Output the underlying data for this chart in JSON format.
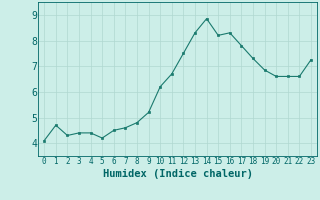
{
  "x": [
    0,
    1,
    2,
    3,
    4,
    5,
    6,
    7,
    8,
    9,
    10,
    11,
    12,
    13,
    14,
    15,
    16,
    17,
    18,
    19,
    20,
    21,
    22,
    23
  ],
  "y": [
    4.1,
    4.7,
    4.3,
    4.4,
    4.4,
    4.2,
    4.5,
    4.6,
    4.8,
    5.2,
    6.2,
    6.7,
    7.5,
    8.3,
    8.85,
    8.2,
    8.3,
    7.8,
    7.3,
    6.85,
    6.6,
    6.6,
    6.6,
    7.25
  ],
  "ylim": [
    3.5,
    9.5
  ],
  "xlim": [
    -0.5,
    23.5
  ],
  "yticks": [
    4,
    5,
    6,
    7,
    8,
    9
  ],
  "xticks": [
    0,
    1,
    2,
    3,
    4,
    5,
    6,
    7,
    8,
    9,
    10,
    11,
    12,
    13,
    14,
    15,
    16,
    17,
    18,
    19,
    20,
    21,
    22,
    23
  ],
  "line_color": "#1a7a6e",
  "marker_color": "#1a7a6e",
  "bg_color": "#cceee8",
  "grid_color": "#b0d8d0",
  "xlabel": "Humidex (Indice chaleur)",
  "tick_color": "#006666",
  "xlabel_color": "#006666",
  "xlabel_fontsize": 7.5,
  "ytick_fontsize": 7,
  "xtick_fontsize": 5.5
}
